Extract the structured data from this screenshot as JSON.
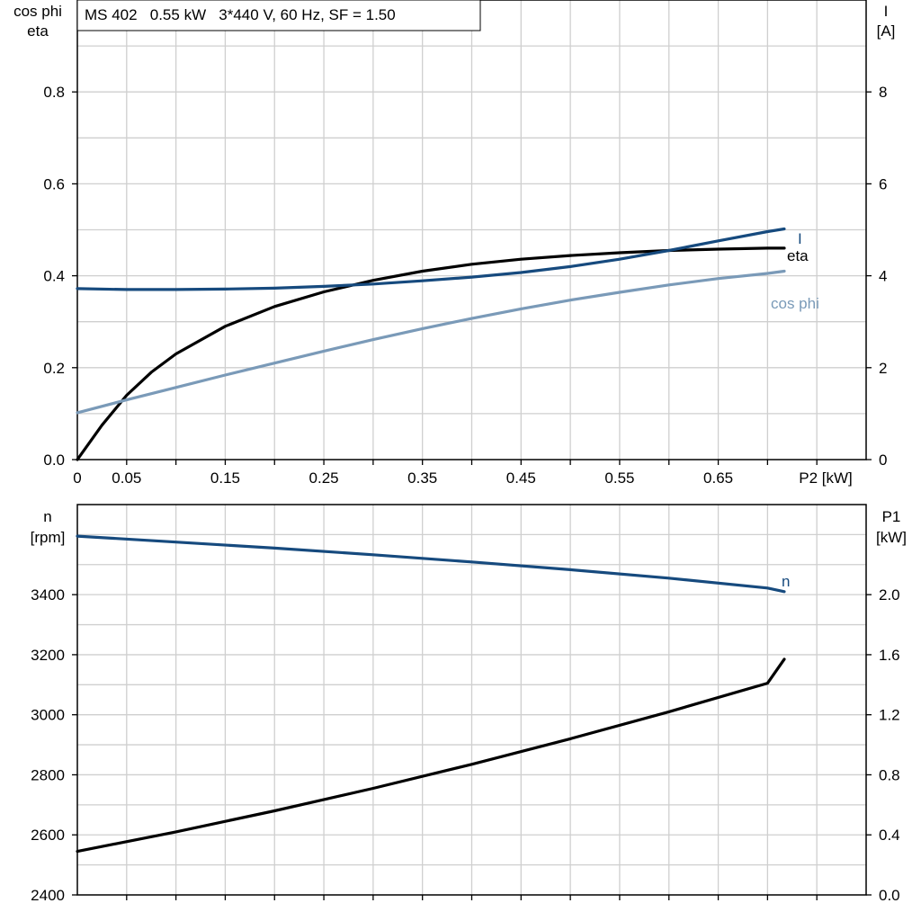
{
  "chart_data": [
    {
      "type": "line",
      "title": "MS 402   0.55 kW   3*440 V, 60 Hz, SF = 1.50",
      "xlabel": "P2 [kW]",
      "ylabel_left": [
        "cos phi",
        "eta"
      ],
      "ylabel_right": [
        "I",
        "[A]"
      ],
      "xlim": [
        0,
        0.8
      ],
      "ylim_left": [
        0,
        1.0
      ],
      "ylim_right": [
        0,
        10
      ],
      "x_ticks": [
        "0",
        "0.05",
        "0.15",
        "0.25",
        "0.35",
        "0.45",
        "0.55",
        "0.65"
      ],
      "x_tick_values": [
        0,
        0.05,
        0.15,
        0.25,
        0.35,
        0.45,
        0.55,
        0.65
      ],
      "y_ticks_left": [
        "0.0",
        "0.2",
        "0.4",
        "0.6",
        "0.8"
      ],
      "y_ticks_left_values": [
        0,
        0.2,
        0.4,
        0.6,
        0.8
      ],
      "y_ticks_right": [
        "0",
        "2",
        "4",
        "6",
        "8"
      ],
      "y_ticks_right_values": [
        0,
        2,
        4,
        6,
        8
      ],
      "grid": true,
      "series": [
        {
          "name": "eta",
          "axis": "left",
          "color": "#000000",
          "x": [
            0,
            0.025,
            0.05,
            0.075,
            0.1,
            0.15,
            0.2,
            0.25,
            0.3,
            0.35,
            0.4,
            0.45,
            0.5,
            0.55,
            0.6,
            0.65,
            0.7,
            0.717
          ],
          "y": [
            0,
            0.075,
            0.14,
            0.19,
            0.23,
            0.29,
            0.333,
            0.365,
            0.39,
            0.41,
            0.425,
            0.436,
            0.444,
            0.45,
            0.455,
            0.458,
            0.46,
            0.46
          ]
        },
        {
          "name": "I",
          "axis": "right",
          "color": "#164a7e",
          "x": [
            0,
            0.05,
            0.1,
            0.15,
            0.2,
            0.25,
            0.3,
            0.35,
            0.4,
            0.45,
            0.5,
            0.55,
            0.6,
            0.65,
            0.7,
            0.717
          ],
          "y": [
            3.72,
            3.7,
            3.7,
            3.71,
            3.73,
            3.77,
            3.82,
            3.89,
            3.97,
            4.07,
            4.2,
            4.36,
            4.55,
            4.76,
            4.96,
            5.02
          ]
        },
        {
          "name": "cos phi",
          "axis": "left",
          "color": "#7a9ab8",
          "x": [
            0,
            0.05,
            0.1,
            0.15,
            0.2,
            0.25,
            0.3,
            0.35,
            0.4,
            0.45,
            0.5,
            0.55,
            0.6,
            0.65,
            0.7,
            0.717
          ],
          "y": [
            0.102,
            0.13,
            0.157,
            0.184,
            0.21,
            0.236,
            0.261,
            0.285,
            0.307,
            0.328,
            0.347,
            0.364,
            0.38,
            0.394,
            0.405,
            0.41
          ]
        }
      ]
    },
    {
      "type": "line",
      "xlabel": "",
      "ylabel_left": [
        "n",
        "[rpm]"
      ],
      "ylabel_right": [
        "P1",
        "[kW]"
      ],
      "xlim": [
        0,
        0.8
      ],
      "ylim_left": [
        2400,
        3700
      ],
      "ylim_right": [
        0,
        2.6
      ],
      "y_ticks_left": [
        "2400",
        "2600",
        "2800",
        "3000",
        "3200",
        "3400"
      ],
      "y_ticks_left_values": [
        2400,
        2600,
        2800,
        3000,
        3200,
        3400
      ],
      "y_ticks_right": [
        "0.0",
        "0.4",
        "0.8",
        "1.2",
        "1.6",
        "2.0"
      ],
      "y_ticks_right_values": [
        0,
        0.4,
        0.8,
        1.2,
        1.6,
        2.0
      ],
      "grid": true,
      "series": [
        {
          "name": "n",
          "axis": "left",
          "color": "#164a7e",
          "x": [
            0,
            0.1,
            0.2,
            0.3,
            0.4,
            0.5,
            0.6,
            0.7,
            0.717
          ],
          "y": [
            3595,
            3575,
            3555,
            3533,
            3509,
            3483,
            3455,
            3422,
            3410
          ]
        },
        {
          "axis": "right",
          "color": "#000000",
          "x": [
            0,
            0.1,
            0.2,
            0.3,
            0.4,
            0.5,
            0.6,
            0.7,
            0.717
          ],
          "y": [
            0.29,
            0.42,
            0.56,
            0.71,
            0.87,
            1.04,
            1.22,
            1.41,
            1.57
          ]
        }
      ]
    }
  ]
}
